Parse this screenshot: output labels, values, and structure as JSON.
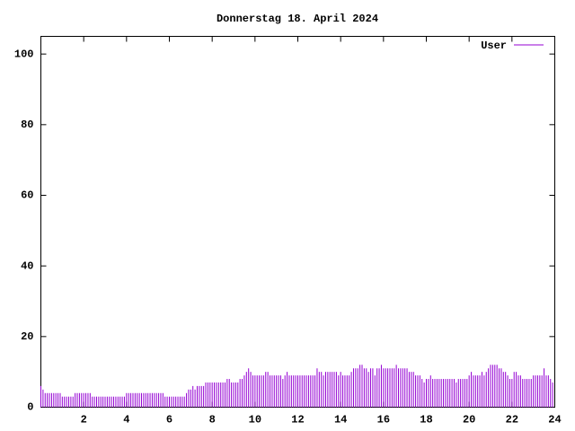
{
  "chart_data": {
    "type": "impulse",
    "title": "Donnerstag 18. April 2024",
    "x": [
      0,
      0.1,
      0.2,
      0.3,
      0.4,
      0.5,
      0.6,
      0.7,
      0.8,
      0.9,
      1,
      1.1,
      1.2,
      1.3,
      1.4,
      1.5,
      1.6,
      1.7,
      1.8,
      1.9,
      2,
      2.1,
      2.2,
      2.3,
      2.4,
      2.5,
      2.6,
      2.7,
      2.8,
      2.9,
      3,
      3.1,
      3.2,
      3.3,
      3.4,
      3.5,
      3.6,
      3.7,
      3.8,
      3.9,
      4,
      4.1,
      4.2,
      4.3,
      4.4,
      4.5,
      4.6,
      4.7,
      4.8,
      4.9,
      5,
      5.1,
      5.2,
      5.3,
      5.4,
      5.5,
      5.6,
      5.7,
      5.8,
      5.9,
      6,
      6.1,
      6.2,
      6.3,
      6.4,
      6.5,
      6.6,
      6.7,
      6.8,
      6.9,
      7,
      7.1,
      7.2,
      7.3,
      7.4,
      7.5,
      7.6,
      7.7,
      7.8,
      7.9,
      8,
      8.1,
      8.2,
      8.3,
      8.4,
      8.5,
      8.6,
      8.7,
      8.8,
      8.9,
      9,
      9.1,
      9.2,
      9.3,
      9.4,
      9.5,
      9.6,
      9.7,
      9.8,
      9.9,
      10,
      10.1,
      10.2,
      10.3,
      10.4,
      10.5,
      10.6,
      10.7,
      10.8,
      10.9,
      11,
      11.1,
      11.2,
      11.3,
      11.4,
      11.5,
      11.6,
      11.7,
      11.8,
      11.9,
      12,
      12.1,
      12.2,
      12.3,
      12.4,
      12.5,
      12.6,
      12.7,
      12.8,
      12.9,
      13,
      13.1,
      13.2,
      13.3,
      13.4,
      13.5,
      13.6,
      13.7,
      13.8,
      13.9,
      14,
      14.1,
      14.2,
      14.3,
      14.4,
      14.5,
      14.6,
      14.7,
      14.8,
      14.9,
      15,
      15.1,
      15.2,
      15.3,
      15.4,
      15.5,
      15.6,
      15.7,
      15.8,
      15.9,
      16,
      16.1,
      16.2,
      16.3,
      16.4,
      16.5,
      16.6,
      16.7,
      16.8,
      16.9,
      17,
      17.1,
      17.2,
      17.3,
      17.4,
      17.5,
      17.6,
      17.7,
      17.8,
      17.9,
      18,
      18.1,
      18.2,
      18.3,
      18.4,
      18.5,
      18.6,
      18.7,
      18.8,
      18.9,
      19,
      19.1,
      19.2,
      19.3,
      19.4,
      19.5,
      19.6,
      19.7,
      19.8,
      19.9,
      20,
      20.1,
      20.2,
      20.3,
      20.4,
      20.5,
      20.6,
      20.7,
      20.8,
      20.9,
      21,
      21.1,
      21.2,
      21.3,
      21.4,
      21.5,
      21.6,
      21.7,
      21.8,
      21.9,
      22,
      22.1,
      22.2,
      22.3,
      22.4,
      22.5,
      22.6,
      22.7,
      22.8,
      22.9,
      23,
      23.1,
      23.2,
      23.3,
      23.4,
      23.5,
      23.6,
      23.7,
      23.8,
      23.9
    ],
    "series": [
      {
        "name": "User",
        "color": "#9400d3",
        "values": [
          6,
          5,
          4,
          4,
          4,
          4,
          4,
          4,
          4,
          4,
          3,
          3,
          3,
          3,
          3,
          3,
          4,
          4,
          4,
          4,
          4,
          4,
          4,
          4,
          3,
          3,
          3,
          3,
          3,
          3,
          3,
          3,
          3,
          3,
          3,
          3,
          3,
          3,
          3,
          3,
          4,
          4,
          4,
          4,
          4,
          4,
          4,
          4,
          4,
          4,
          4,
          4,
          4,
          4,
          4,
          4,
          4,
          4,
          3,
          3,
          3,
          3,
          3,
          3,
          3,
          3,
          3,
          3,
          4,
          5,
          5,
          6,
          5,
          6,
          6,
          6,
          6,
          7,
          7,
          7,
          7,
          7,
          7,
          7,
          7,
          7,
          7,
          8,
          8,
          7,
          7,
          7,
          7,
          8,
          8,
          9,
          10,
          11,
          10,
          9,
          9,
          9,
          9,
          9,
          9,
          10,
          10,
          9,
          9,
          9,
          9,
          9,
          9,
          8,
          9,
          10,
          9,
          9,
          9,
          9,
          9,
          9,
          9,
          9,
          9,
          9,
          9,
          9,
          9,
          11,
          10,
          10,
          9,
          10,
          10,
          10,
          10,
          10,
          10,
          9,
          10,
          9,
          9,
          9,
          9,
          10,
          11,
          11,
          11,
          12,
          12,
          11,
          11,
          10,
          11,
          11,
          9,
          11,
          11,
          12,
          11,
          11,
          11,
          11,
          11,
          11,
          12,
          11,
          11,
          11,
          11,
          11,
          10,
          10,
          10,
          9,
          9,
          9,
          8,
          7,
          8,
          8,
          9,
          8,
          8,
          8,
          8,
          8,
          8,
          8,
          8,
          8,
          8,
          8,
          7,
          8,
          8,
          8,
          8,
          8,
          9,
          10,
          9,
          9,
          9,
          9,
          10,
          9,
          10,
          11,
          12,
          12,
          12,
          12,
          11,
          11,
          10,
          10,
          9,
          8,
          8,
          10,
          10,
          9,
          9,
          8,
          8,
          8,
          8,
          8,
          9,
          9,
          9,
          9,
          9,
          11,
          9,
          9,
          8,
          7
        ]
      }
    ],
    "xlim": [
      0,
      24
    ],
    "xticks": [
      2,
      4,
      6,
      8,
      10,
      12,
      14,
      16,
      18,
      20,
      22,
      24
    ],
    "ylim": [
      0,
      105
    ],
    "yticks": [
      0,
      20,
      40,
      60,
      80,
      100
    ]
  }
}
